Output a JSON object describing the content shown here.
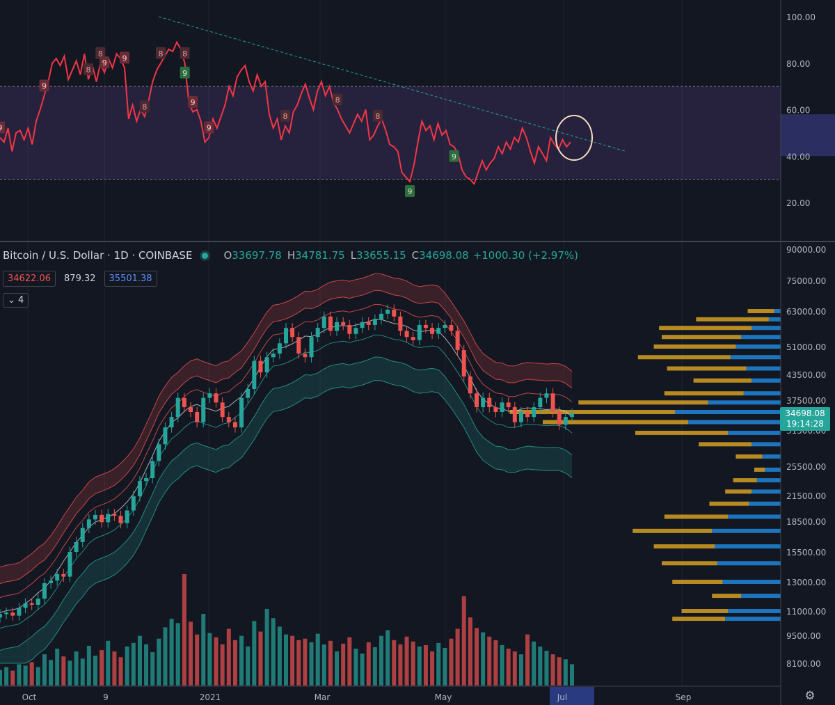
{
  "legend": {
    "symbol": "Bitcoin / U.S. Dollar · 1D · COINBASE",
    "o_label": "O",
    "open": "33697.78",
    "h_label": "H",
    "high": "34781.75",
    "l_label": "L",
    "low": "33655.15",
    "c_label": "C",
    "close": "34698.08",
    "change": "+1000.30 (+2.97%)"
  },
  "indicators": {
    "value1": "34622.06",
    "value2": "879.32",
    "value3": "35501.38",
    "collapse_label": "4"
  },
  "price_tag": {
    "price": "34698.08",
    "countdown": "19:14:28"
  },
  "settings_icon": "gear-icon",
  "chart_data": [
    {
      "type": "line",
      "panel": "RSI",
      "y_ticks": [
        "100.00",
        "80.00",
        "60.00",
        "40.00",
        "20.00"
      ],
      "ylim": [
        0,
        105
      ],
      "band": [
        30,
        70
      ],
      "highlight_band": [
        40,
        58
      ],
      "colors": {
        "line": "#f23645",
        "band": "#7e57c2",
        "trend": "#26a69a"
      },
      "series": [
        {
          "values": [
            48,
            46,
            52,
            42,
            50,
            51,
            47,
            52,
            45,
            55,
            60,
            66,
            72,
            80,
            82,
            79,
            83,
            73,
            77,
            81,
            75,
            84,
            73,
            79,
            72,
            80,
            76,
            82,
            78,
            84,
            82,
            78,
            56,
            62,
            55,
            60,
            57,
            64,
            72,
            77,
            80,
            83,
            86,
            85,
            89,
            86,
            80,
            63,
            59,
            60,
            55,
            46,
            48,
            56,
            52,
            57,
            62,
            70,
            66,
            74,
            77,
            79,
            72,
            68,
            75,
            70,
            72,
            58,
            52,
            56,
            47,
            53,
            50,
            59,
            62,
            67,
            71,
            65,
            60,
            68,
            72,
            66,
            70,
            63,
            60,
            56,
            53,
            50,
            54,
            58,
            55,
            60,
            47,
            49,
            53,
            56,
            51,
            45,
            44,
            42,
            33,
            31,
            29,
            36,
            46,
            55,
            51,
            53,
            47,
            54,
            49,
            51,
            45,
            44,
            41,
            34,
            31,
            30,
            28,
            33,
            38,
            34,
            37,
            39,
            44,
            41,
            46,
            43,
            48,
            46,
            52,
            48,
            42,
            37,
            44,
            41,
            38,
            48,
            45,
            43,
            47,
            44,
            46
          ]
        }
      ],
      "labels_8": [
        22,
        25,
        36,
        40,
        46,
        71,
        84,
        94
      ],
      "labels_9_red": [
        0,
        11,
        26,
        31,
        48,
        52
      ],
      "labels_9_green": [
        46,
        102,
        113
      ],
      "trendline": {
        "x": [
          0.19,
          0.75
        ],
        "y": [
          100,
          42
        ]
      }
    },
    {
      "type": "candlestick",
      "panel": "price",
      "title": "Bitcoin / U.S. Dollar · 1D · COINBASE",
      "y_ticks": [
        "90000.00",
        "75000.00",
        "63000.00",
        "51000.00",
        "43500.00",
        "37500.00",
        "31500.00",
        "25500.00",
        "21500.00",
        "18500.00",
        "15500.00",
        "13000.00",
        "11000.00",
        "9500.00",
        "8100.00"
      ],
      "x_ticks": [
        "Oct",
        "9",
        "2021",
        "Mar",
        "May",
        "Jul",
        "Sep"
      ],
      "scale": "log",
      "colors": {
        "up": "#26a69a",
        "down": "#ef5350",
        "upper_band": "#ef5350",
        "lower_band": "#26a69a",
        "mid": "#d1d4dc",
        "vp_up": "#2196f3",
        "vp_down": "#f0b323"
      },
      "close_series": [
        10800,
        10900,
        10700,
        11200,
        11500,
        11400,
        11800,
        12900,
        13100,
        13600,
        13400,
        15500,
        16400,
        17800,
        18700,
        19200,
        18400,
        19300,
        19100,
        18300,
        19700,
        21400,
        23400,
        23800,
        26300,
        29000,
        32000,
        34000,
        38000,
        36000,
        35000,
        33000,
        38000,
        39000,
        37000,
        34000,
        33000,
        32000,
        38000,
        40000,
        47000,
        44000,
        48000,
        49000,
        52000,
        57000,
        54000,
        49000,
        48000,
        54000,
        57000,
        61000,
        56000,
        59000,
        58000,
        55000,
        57000,
        59000,
        58000,
        60000,
        62000,
        63500,
        61000,
        56000,
        54000,
        53000,
        58000,
        57000,
        55000,
        57000,
        58000,
        56000,
        50000,
        43000,
        39000,
        36000,
        38000,
        36000,
        35000,
        37000,
        36000,
        33000,
        35000,
        34000,
        36000,
        38000,
        39000,
        35000,
        32500,
        34000,
        34698
      ],
      "volume_series": [
        22,
        26,
        21,
        30,
        28,
        33,
        26,
        44,
        36,
        52,
        41,
        35,
        48,
        38,
        56,
        42,
        50,
        63,
        48,
        40,
        55,
        60,
        70,
        58,
        47,
        66,
        82,
        94,
        88,
        157,
        90,
        72,
        101,
        74,
        68,
        58,
        80,
        64,
        70,
        55,
        91,
        76,
        108,
        95,
        83,
        72,
        70,
        64,
        66,
        61,
        73,
        58,
        63,
        48,
        59,
        68,
        52,
        45,
        61,
        54,
        70,
        78,
        64,
        58,
        69,
        62,
        55,
        57,
        48,
        60,
        53,
        66,
        80,
        126,
        96,
        81,
        75,
        69,
        64,
        57,
        52,
        48,
        44,
        72,
        62,
        55,
        49,
        44,
        40,
        37,
        30
      ],
      "volume_profile": {
        "price_levels": [
          63000,
          60000,
          57000,
          54000,
          51000,
          48000,
          45000,
          42000,
          39000,
          37000,
          35000,
          33000,
          31000,
          29000,
          27000,
          25000,
          23500,
          22000,
          20500,
          19000,
          17500,
          16000,
          14500,
          13000,
          12000,
          11000,
          10500
        ],
        "up": [
          5,
          9,
          22,
          30,
          34,
          38,
          26,
          22,
          28,
          55,
          80,
          70,
          40,
          22,
          14,
          12,
          18,
          22,
          24,
          40,
          52,
          50,
          48,
          44,
          30,
          40,
          42
        ],
        "down": [
          20,
          55,
          70,
          60,
          62,
          70,
          60,
          44,
          60,
          98,
          125,
          110,
          70,
          40,
          20,
          8,
          18,
          20,
          30,
          48,
          60,
          46,
          42,
          38,
          22,
          35,
          40
        ]
      }
    }
  ]
}
